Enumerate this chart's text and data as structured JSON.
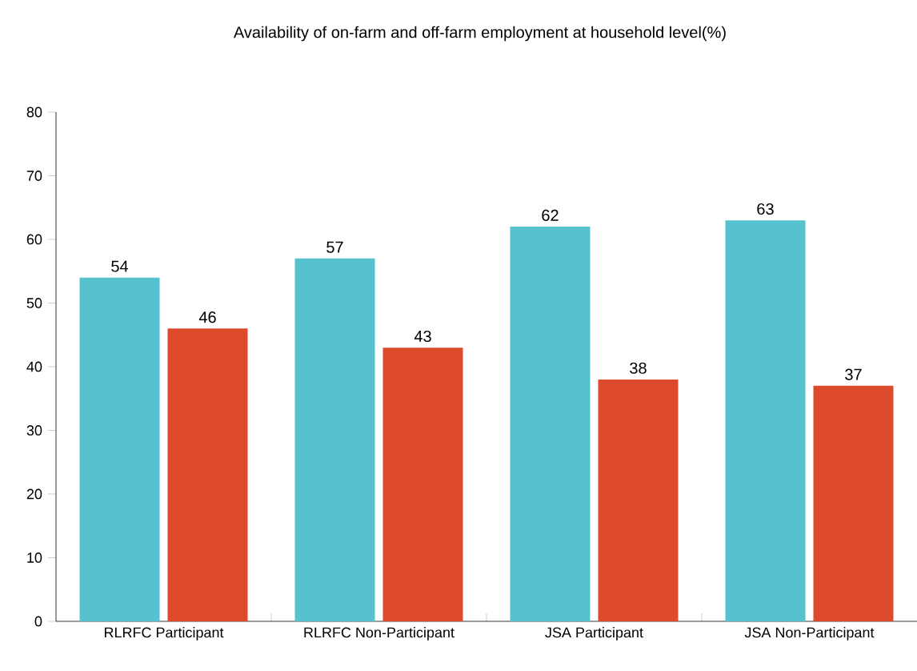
{
  "chart_data": {
    "type": "bar",
    "title": "Availability of on-farm and off-farm employment at household level(%)",
    "categories": [
      "RLRFC Participant",
      "RLRFC Non-Participant",
      "JSA Participant",
      "JSA Non-Participant"
    ],
    "series": [
      {
        "color": "#56c1cf",
        "values": [
          54,
          57,
          62,
          63
        ]
      },
      {
        "color": "#de4a2c",
        "values": [
          46,
          43,
          38,
          37
        ]
      }
    ],
    "ylim": [
      0,
      80
    ],
    "yticks": [
      0,
      10,
      20,
      30,
      40,
      50,
      60,
      70,
      80
    ],
    "data_labels": true
  }
}
